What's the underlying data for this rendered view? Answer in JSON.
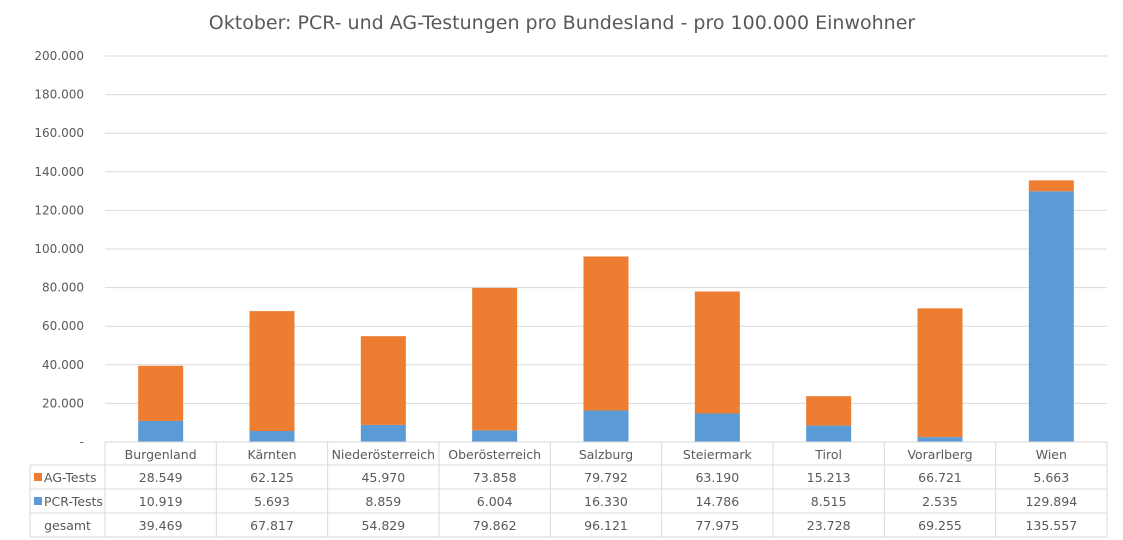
{
  "chart_data": {
    "type": "bar",
    "stacked": true,
    "title": "Oktober: PCR- und AG-Testungen pro Bundesland - pro 100.000 Einwohner",
    "xlabel": "",
    "ylabel": "",
    "ylim": [
      0,
      200000
    ],
    "yticks": [
      "-",
      "20.000",
      "40.000",
      "60.000",
      "80.000",
      "100.000",
      "120.000",
      "140.000",
      "160.000",
      "180.000",
      "200.000"
    ],
    "grid": true,
    "legend": "data-table",
    "categories": [
      "Burgenland",
      "Kärnten",
      "Niederösterreich",
      "Oberösterreich",
      "Salzburg",
      "Steiermark",
      "Tirol",
      "Vorarlberg",
      "Wien"
    ],
    "series": [
      {
        "name": "PCR-Tests",
        "color": "#5b9bd5",
        "values": [
          10919,
          5693,
          8859,
          6004,
          16330,
          14786,
          8515,
          2535,
          129894
        ],
        "labels": [
          "10.919",
          "5.693",
          "8.859",
          "6.004",
          "16.330",
          "14.786",
          "8.515",
          "2.535",
          "129.894"
        ]
      },
      {
        "name": "AG-Tests",
        "color": "#ed7d31",
        "values": [
          28549,
          62125,
          45970,
          73858,
          79792,
          63190,
          15213,
          66721,
          5663
        ],
        "labels": [
          "28.549",
          "62.125",
          "45.970",
          "73.858",
          "79.792",
          "63.190",
          "15.213",
          "66.721",
          "5.663"
        ]
      }
    ],
    "table_rows": [
      {
        "name": "AG-Tests",
        "color": "#ed7d31",
        "labels": [
          "28.549",
          "62.125",
          "45.970",
          "73.858",
          "79.792",
          "63.190",
          "15.213",
          "66.721",
          "5.663"
        ]
      },
      {
        "name": "PCR-Tests",
        "color": "#5b9bd5",
        "labels": [
          "10.919",
          "5.693",
          "8.859",
          "6.004",
          "16.330",
          "14.786",
          "8.515",
          "2.535",
          "129.894"
        ]
      },
      {
        "name": "gesamt",
        "color": "",
        "labels": [
          "39.469",
          "67.817",
          "54.829",
          "79.862",
          "96.121",
          "77.975",
          "23.728",
          "69.255",
          "135.557"
        ]
      }
    ]
  }
}
